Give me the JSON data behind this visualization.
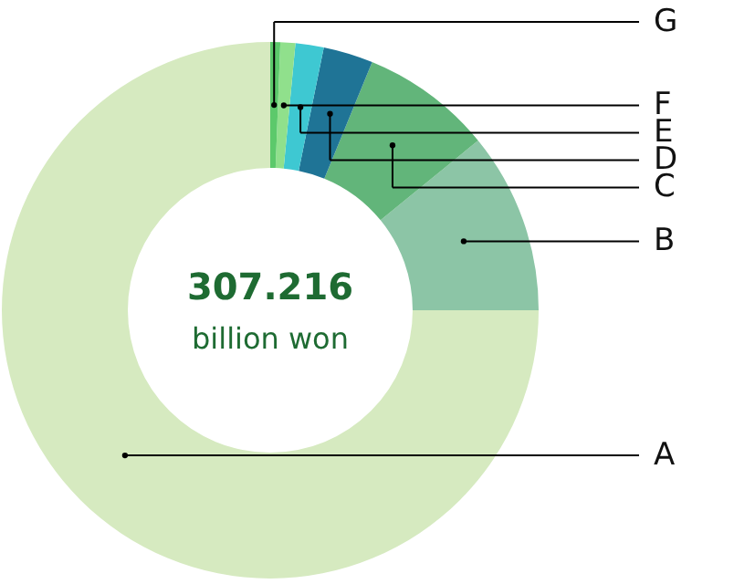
{
  "chart_data": {
    "type": "donut",
    "categories": [
      "A",
      "B",
      "C",
      "D",
      "E",
      "F",
      "G"
    ],
    "values": [
      75.0,
      10.9,
      7.9,
      3.0,
      1.7,
      0.9,
      0.6
    ],
    "colors": [
      "#d6eac0",
      "#8cc5a6",
      "#62b57a",
      "#1f7496",
      "#3ec8d2",
      "#90e08c",
      "#5cc96b"
    ],
    "annotations": [
      "307.216",
      "billion won"
    ]
  }
}
